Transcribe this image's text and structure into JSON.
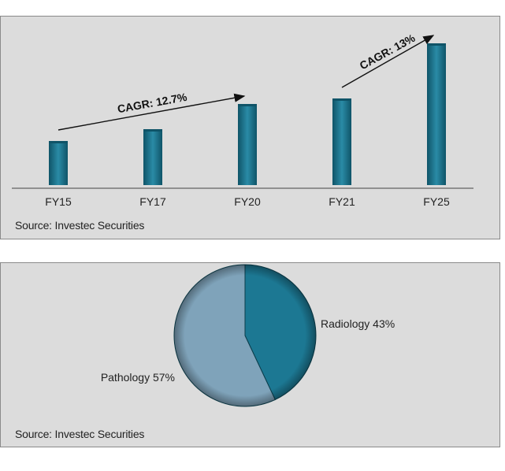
{
  "chart_data": [
    {
      "type": "bar",
      "categories": [
        "FY15",
        "FY17",
        "FY20",
        "FY21",
        "FY25"
      ],
      "values": [
        56,
        71,
        103,
        110,
        180
      ],
      "ylim": [
        0,
        190
      ],
      "grid": false,
      "colors": {
        "bar": "#1e7f99",
        "bar_dark": "#0f5468"
      },
      "annotations": [
        {
          "text": "CAGR: 12.7%",
          "from": "FY15",
          "to": "FY20"
        },
        {
          "text": "CAGR: 13%",
          "from": "FY21",
          "to": "FY25"
        }
      ],
      "source": "Source: Investec Securities"
    },
    {
      "type": "pie",
      "slices": [
        {
          "label": "Radiology 43%",
          "value": 43,
          "color": "#1c7893"
        },
        {
          "label": "Pathology 57%",
          "value": 57,
          "color": "#7fa3ba"
        }
      ],
      "source": "Source: Investec Securities"
    }
  ]
}
